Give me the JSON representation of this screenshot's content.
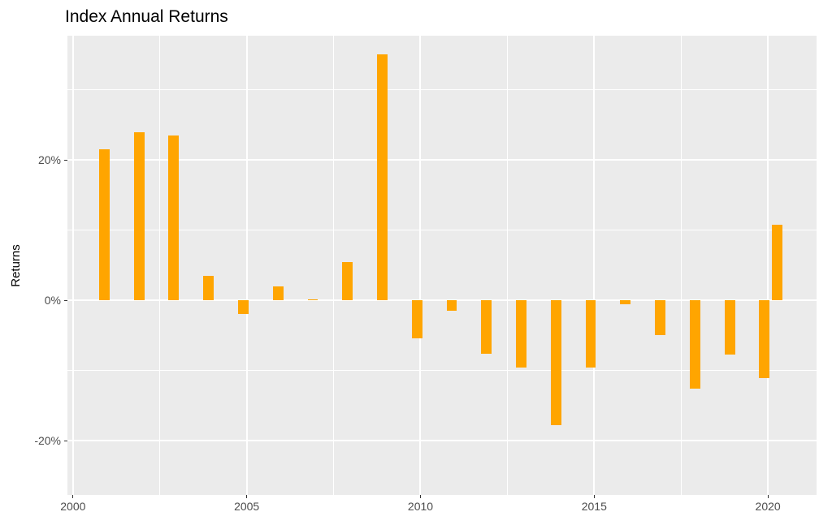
{
  "chart_data": {
    "type": "bar",
    "title": "Index Annual Returns",
    "xlabel": "",
    "ylabel": "Returns",
    "units": "percent",
    "legend": "none",
    "bar_color": "#FFA500",
    "panel_background": "#EBEBEB",
    "grid_color": "#FFFFFF",
    "axis_text_color": "#4D4D4D",
    "tick_mark_color": "#333333",
    "x_range": [
      1999.84,
      2021.4
    ],
    "y_range": [
      -27.7,
      37.7
    ],
    "bar_width_years": 0.3,
    "x_major_gridlines": [
      2000,
      2005,
      2010,
      2015,
      2020
    ],
    "x_minor_gridlines": [
      2002.5,
      2007.5,
      2012.5,
      2017.5
    ],
    "y_major_gridlines": [
      -20,
      0,
      20
    ],
    "y_minor_gridlines": [
      -10,
      10,
      30
    ],
    "x_ticks": [
      {
        "value": 2000,
        "label": "2000"
      },
      {
        "value": 2005,
        "label": "2005"
      },
      {
        "value": 2010,
        "label": "2010"
      },
      {
        "value": 2015,
        "label": "2015"
      },
      {
        "value": 2020,
        "label": "2020"
      }
    ],
    "y_ticks": [
      {
        "value": 20,
        "label": "20%"
      },
      {
        "value": 0,
        "label": "0%"
      },
      {
        "value": -20,
        "label": "-20%"
      }
    ],
    "points": [
      {
        "x": 2000.9,
        "value_pct": 21.5
      },
      {
        "x": 2001.9,
        "value_pct": 24.0
      },
      {
        "x": 2002.9,
        "value_pct": 23.5
      },
      {
        "x": 2003.9,
        "value_pct": 3.5
      },
      {
        "x": 2004.9,
        "value_pct": -1.9
      },
      {
        "x": 2005.9,
        "value_pct": 2.0
      },
      {
        "x": 2006.9,
        "value_pct": 0.2
      },
      {
        "x": 2007.9,
        "value_pct": 5.5
      },
      {
        "x": 2008.9,
        "value_pct": 35.0
      },
      {
        "x": 2009.9,
        "value_pct": -5.4
      },
      {
        "x": 2010.9,
        "value_pct": -1.5
      },
      {
        "x": 2011.9,
        "value_pct": -7.6
      },
      {
        "x": 2012.9,
        "value_pct": -9.6
      },
      {
        "x": 2013.9,
        "value_pct": -17.8
      },
      {
        "x": 2014.9,
        "value_pct": -9.6
      },
      {
        "x": 2015.9,
        "value_pct": -0.5
      },
      {
        "x": 2016.9,
        "value_pct": -4.9
      },
      {
        "x": 2017.9,
        "value_pct": -12.6
      },
      {
        "x": 2018.9,
        "value_pct": -7.7
      },
      {
        "x": 2019.9,
        "value_pct": -11.1
      },
      {
        "x": 2020.26,
        "value_pct": 10.8
      }
    ]
  }
}
